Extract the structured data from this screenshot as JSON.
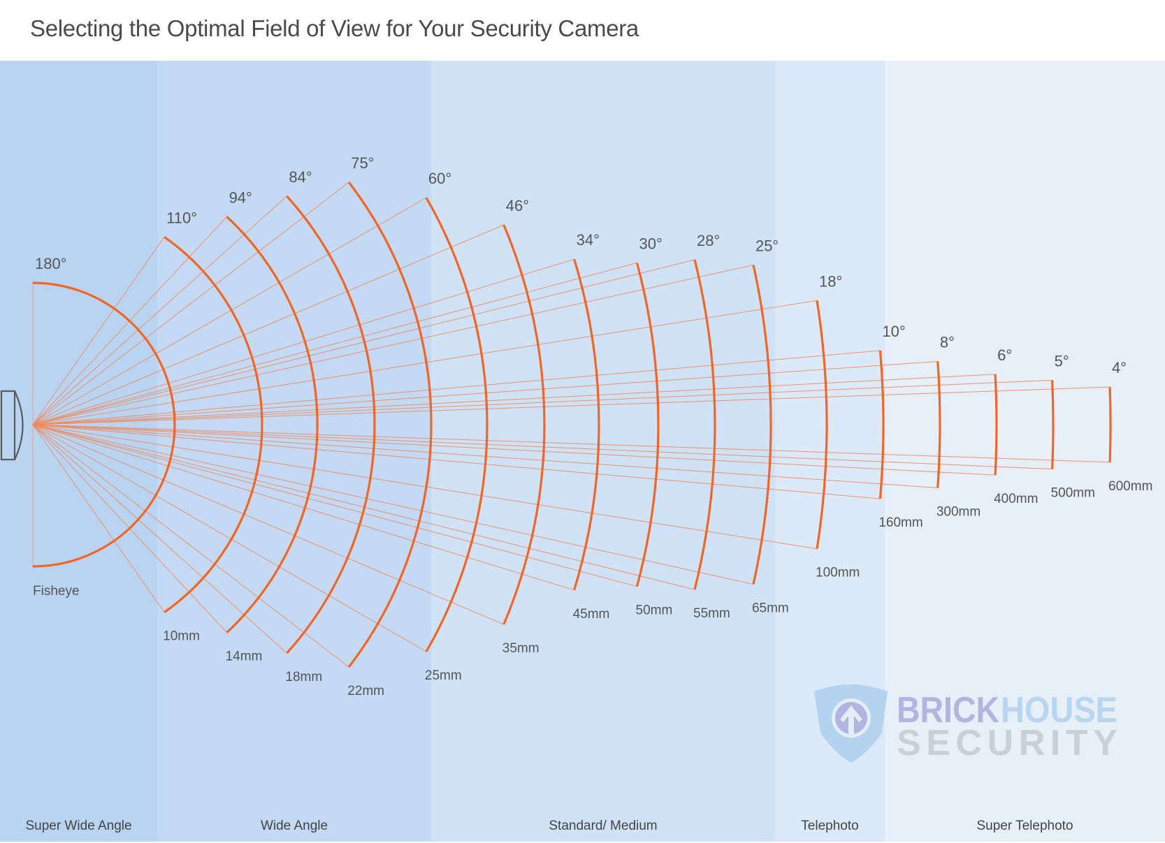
{
  "title": "Selecting the Optimal Field of View for Your Security Camera",
  "chart_data": {
    "type": "diagram",
    "title": "Selecting the Optimal Field of View for Your Security Camera",
    "description": "Angle of view versus lens focal length",
    "lenses": [
      {
        "angle": 180,
        "angle_label": "180°",
        "focal_label": "Fisheye",
        "category": "Super Wide Angle"
      },
      {
        "angle": 110,
        "angle_label": "110°",
        "focal_label": "10mm",
        "focal_mm": 10,
        "category": "Wide Angle"
      },
      {
        "angle": 94,
        "angle_label": "94°",
        "focal_label": "14mm",
        "focal_mm": 14,
        "category": "Wide Angle"
      },
      {
        "angle": 84,
        "angle_label": "84°",
        "focal_label": "18mm",
        "focal_mm": 18,
        "category": "Wide Angle"
      },
      {
        "angle": 75,
        "angle_label": "75°",
        "focal_label": "22mm",
        "focal_mm": 22,
        "category": "Wide Angle"
      },
      {
        "angle": 60,
        "angle_label": "60°",
        "focal_label": "25mm",
        "focal_mm": 25,
        "category": "Wide Angle"
      },
      {
        "angle": 46,
        "angle_label": "46°",
        "focal_label": "35mm",
        "focal_mm": 35,
        "category": "Standard/ Medium"
      },
      {
        "angle": 34,
        "angle_label": "34°",
        "focal_label": "45mm",
        "focal_mm": 45,
        "category": "Standard/ Medium"
      },
      {
        "angle": 30,
        "angle_label": "30°",
        "focal_label": "50mm",
        "focal_mm": 50,
        "category": "Standard/ Medium"
      },
      {
        "angle": 28,
        "angle_label": "28°",
        "focal_label": "55mm",
        "focal_mm": 55,
        "category": "Standard/ Medium"
      },
      {
        "angle": 25,
        "angle_label": "25°",
        "focal_label": "65mm",
        "focal_mm": 65,
        "category": "Standard/ Medium"
      },
      {
        "angle": 18,
        "angle_label": "18°",
        "focal_label": "100mm",
        "focal_mm": 100,
        "category": "Telephoto"
      },
      {
        "angle": 10,
        "angle_label": "10°",
        "focal_label": "160mm",
        "focal_mm": 160,
        "category": "Telephoto"
      },
      {
        "angle": 8,
        "angle_label": "8°",
        "focal_label": "300mm",
        "focal_mm": 300,
        "category": "Super Telephoto"
      },
      {
        "angle": 6,
        "angle_label": "6°",
        "focal_label": "400mm",
        "focal_mm": 400,
        "category": "Super Telephoto"
      },
      {
        "angle": 5,
        "angle_label": "5°",
        "focal_label": "500mm",
        "focal_mm": 500,
        "category": "Super Telephoto"
      },
      {
        "angle": 4,
        "angle_label": "4°",
        "focal_label": "600mm",
        "focal_mm": 600,
        "category": "Super Telephoto"
      }
    ],
    "categories": [
      {
        "label": "Super Wide Angle",
        "color": "#b9d4f1"
      },
      {
        "label": "Wide Angle",
        "color": "#c4d9f3"
      },
      {
        "label": "Standard/ Medium",
        "color": "#d0e2f6"
      },
      {
        "label": "Telephoto",
        "color": "#dce9f8"
      },
      {
        "label": "Super Telephoto",
        "color": "#e7eff9"
      }
    ]
  },
  "colors": {
    "arc": "#f26522",
    "ray": "#f08a5d",
    "camera": "#5a5a5a",
    "text": "#555555"
  },
  "logo": {
    "word1": "BRICK",
    "word2": "HOUSE",
    "word3": "SECURITY",
    "color1": "#b0b6e0",
    "color2": "#b8d6f0",
    "color3": "#c8d0da",
    "shield_color": "#b3d3f0",
    "icon": "shield-arrow-icon"
  }
}
